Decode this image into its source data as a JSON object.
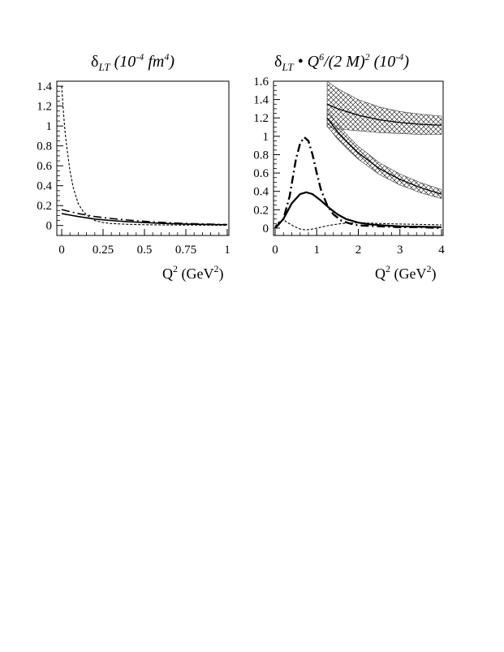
{
  "chart_data": [
    {
      "type": "line",
      "title_main": "δ",
      "title_sub": "LT",
      "title_rest": " (10",
      "title_exp1": "-4",
      "title_mid": " fm",
      "title_exp2": "4",
      "title_end": ")",
      "xlabel_main": "Q",
      "xlabel_sup": "2",
      "xlabel_unit": " (GeV",
      "xlabel_unit_sup": "2",
      "xlabel_end": ")",
      "xlim": [
        0,
        1
      ],
      "ylim": [
        -0.1,
        1.45
      ],
      "xticks": [
        "0",
        "0.25",
        "0.5",
        "0.75",
        "1"
      ],
      "yticks": [
        "0",
        "0.2",
        "0.4",
        "0.6",
        "0.8",
        "1",
        "1.2",
        "1.4"
      ],
      "series": [
        {
          "style": "solid",
          "x": [
            0,
            0.05,
            0.1,
            0.2,
            0.3,
            0.4,
            0.5,
            0.6,
            0.7,
            0.8,
            0.9,
            1.0
          ],
          "y": [
            0.12,
            0.105,
            0.09,
            0.065,
            0.05,
            0.038,
            0.03,
            0.022,
            0.017,
            0.013,
            0.01,
            0.008
          ]
        },
        {
          "style": "dashdot",
          "x": [
            0,
            0.05,
            0.1,
            0.2,
            0.3,
            0.4,
            0.5,
            0.6,
            0.7,
            0.8,
            0.9,
            1.0
          ],
          "y": [
            0.16,
            0.14,
            0.12,
            0.09,
            0.07,
            0.055,
            0.042,
            0.032,
            0.024,
            0.018,
            0.014,
            0.01
          ]
        },
        {
          "style": "dashed",
          "x": [
            0,
            0.01,
            0.02,
            0.03,
            0.05,
            0.07,
            0.1,
            0.13,
            0.17,
            0.2,
            0.25,
            0.3,
            0.4,
            0.5,
            0.6,
            0.7,
            0.8,
            0.9,
            1.0
          ],
          "y": [
            1.4,
            1.15,
            0.95,
            0.8,
            0.55,
            0.38,
            0.22,
            0.14,
            0.08,
            0.05,
            0.03,
            0.02,
            0.012,
            0.008,
            0.006,
            0.005,
            0.004,
            0.003,
            0.002
          ]
        }
      ]
    },
    {
      "type": "line",
      "title_main": "δ",
      "title_sub": "LT",
      "title_rest": " • Q",
      "title_exp1": "6",
      "title_mid": "/(2 M)",
      "title_exp2": "2",
      "title_end": "  (10",
      "title_exp3": "-4",
      "title_end2": ")",
      "xlabel_main": "Q",
      "xlabel_sup": "2",
      "xlabel_unit": " (GeV",
      "xlabel_unit_sup": "2",
      "xlabel_end": ")",
      "xlim": [
        0,
        4
      ],
      "ylim": [
        -0.08,
        1.6
      ],
      "xticks": [
        "0",
        "1",
        "2",
        "3",
        "4"
      ],
      "yticks": [
        "0",
        "0.2",
        "0.4",
        "0.6",
        "0.8",
        "1",
        "1.2",
        "1.4",
        "1.6"
      ],
      "series": [
        {
          "style": "solid-bold",
          "x": [
            0,
            0.2,
            0.4,
            0.6,
            0.75,
            0.9,
            1.1,
            1.3,
            1.5,
            1.7,
            2.0,
            2.3,
            2.6,
            3.0,
            3.5,
            4.0
          ],
          "y": [
            0,
            0.1,
            0.27,
            0.37,
            0.39,
            0.37,
            0.3,
            0.22,
            0.15,
            0.1,
            0.06,
            0.04,
            0.03,
            0.02,
            0.015,
            0.01
          ]
        },
        {
          "style": "dashdot-bold",
          "x": [
            0,
            0.2,
            0.35,
            0.5,
            0.6,
            0.7,
            0.8,
            0.9,
            1.0,
            1.1,
            1.25,
            1.4,
            1.6,
            1.8,
            2.0,
            2.5,
            3.0,
            3.5,
            4.0
          ],
          "y": [
            0,
            0.1,
            0.35,
            0.75,
            0.92,
            0.99,
            0.95,
            0.8,
            0.6,
            0.42,
            0.25,
            0.15,
            0.08,
            0.05,
            0.03,
            0.02,
            0.01,
            0.01,
            0.0
          ]
        },
        {
          "style": "dashed",
          "x": [
            0,
            0.1,
            0.2,
            0.3,
            0.45,
            0.6,
            0.75,
            0.9,
            1.1,
            1.3,
            1.6,
            2.0,
            2.5,
            3.0,
            3.5,
            4.0
          ],
          "y": [
            0.02,
            0.07,
            0.09,
            0.06,
            0.02,
            -0.01,
            -0.02,
            -0.01,
            0.01,
            0.03,
            0.05,
            0.06,
            0.05,
            0.045,
            0.04,
            0.035
          ]
        },
        {
          "style": "band-upper",
          "x": [
            1.25,
            1.5,
            2.0,
            2.5,
            3.0,
            3.5,
            4.0
          ],
          "y": [
            1.35,
            1.3,
            1.23,
            1.18,
            1.15,
            1.13,
            1.12
          ],
          "err": [
            0.25,
            0.22,
            0.17,
            0.14,
            0.12,
            0.11,
            0.1
          ]
        },
        {
          "style": "band-lower",
          "x": [
            1.25,
            1.5,
            1.75,
            2.0,
            2.5,
            3.0,
            3.5,
            4.0
          ],
          "y": [
            1.2,
            1.05,
            0.93,
            0.82,
            0.65,
            0.53,
            0.44,
            0.37
          ],
          "err": [
            0.09,
            0.08,
            0.075,
            0.07,
            0.065,
            0.06,
            0.055,
            0.05
          ]
        }
      ]
    }
  ]
}
